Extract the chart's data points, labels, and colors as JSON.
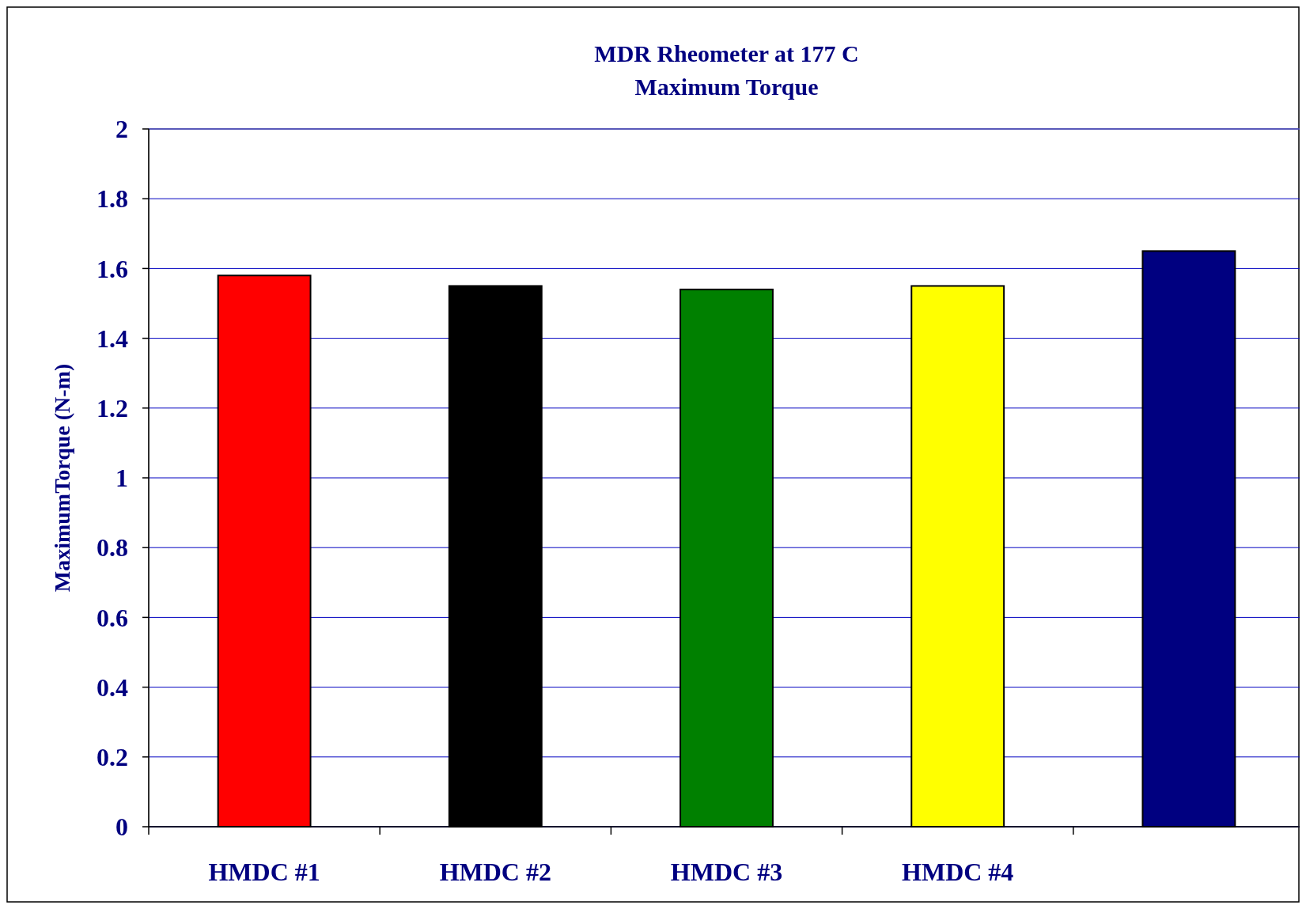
{
  "chart_data": {
    "type": "bar",
    "title": "MDR Rheometer at 177 C\nMaximum Torque",
    "ylabel": "MaximumTorque (N-m)",
    "categories": [
      "HMDC #1",
      "HMDC #2",
      "HMDC #3",
      "HMDC #4",
      null
    ],
    "values": [
      1.58,
      1.55,
      1.54,
      1.55,
      1.65
    ],
    "colors": [
      "#ff0000",
      "#000000",
      "#008000",
      "#ffff00",
      "#000080"
    ],
    "ylim": [
      0,
      2
    ],
    "yticks": [
      0,
      0.2,
      0.4,
      0.6,
      0.8,
      1,
      1.2,
      1.4,
      1.6,
      1.8,
      2
    ],
    "grid": "y"
  }
}
